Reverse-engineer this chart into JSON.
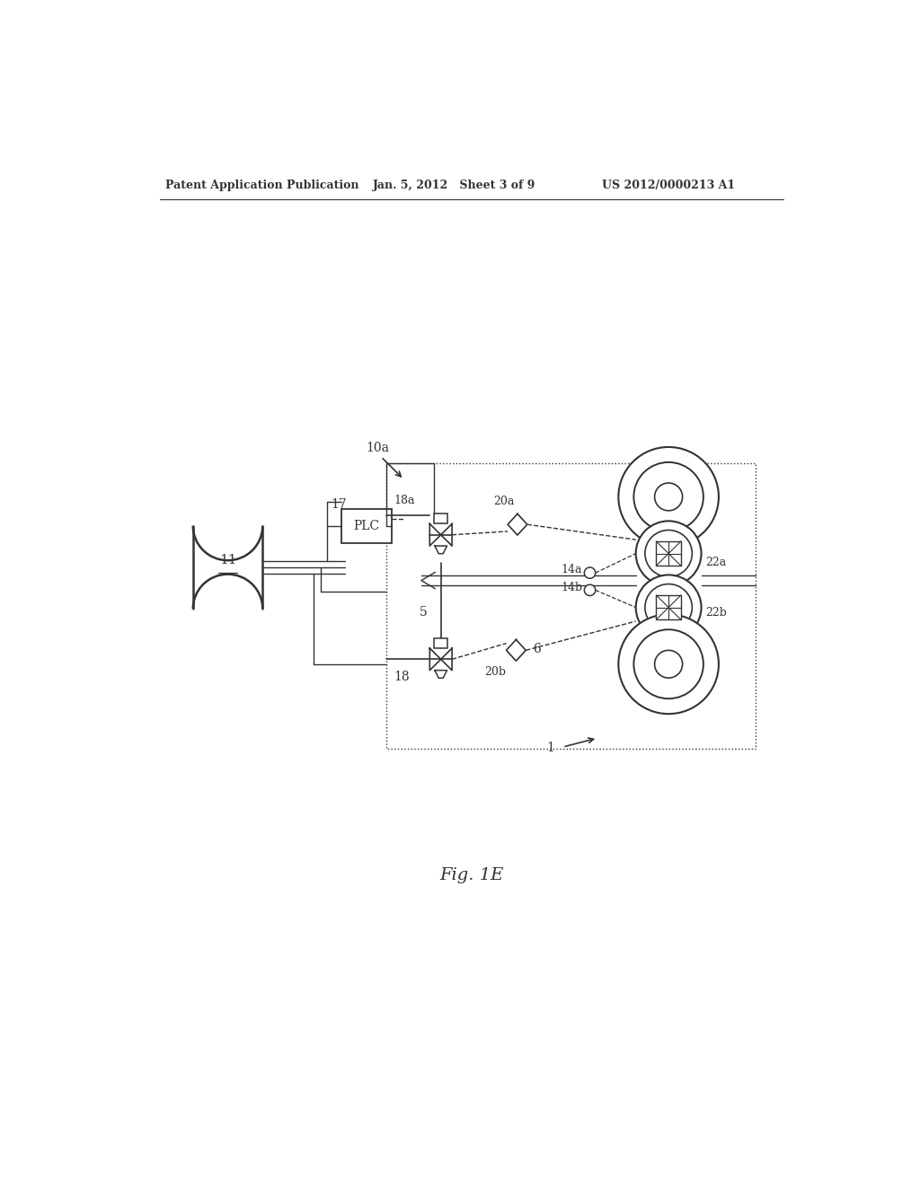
{
  "header_left": "Patent Application Publication",
  "header_mid": "Jan. 5, 2012   Sheet 3 of 9",
  "header_right": "US 2012/0000213 A1",
  "fig_label": "Fig. 1E",
  "bg_color": "#ffffff",
  "lc": "#333333"
}
